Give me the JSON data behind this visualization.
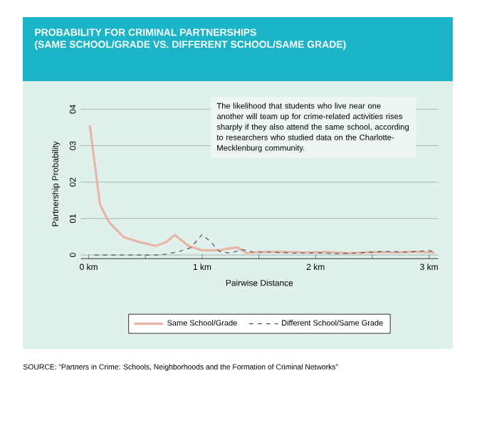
{
  "chart_data": {
    "type": "line",
    "title": "PROBABILITY FOR CRIMINAL PARTNERSHIPS",
    "subtitle": "(SAME SCHOOL/GRADE VS. DIFFERENT SCHOOL/SAME GRADE)",
    "xlabel": "Pairwise Distance",
    "ylabel": "Partnership Probability",
    "annotations": [
      "The likelihood that students who live near one another will team up for crime-related activities rises sharply if they also attend the same school, according to researchers who studied data on the Charlotte-Mecklenburg community.",
      "SOURCE: “Partners in Crime: Schools, Neighborhoods and the Formation of Criminal Networks”"
    ],
    "series": [
      {
        "name": "Same School/Grade",
        "color": "#e8b4a4",
        "line_style": "solid",
        "x": [
          0.01,
          0.1,
          0.18,
          0.31,
          0.45,
          0.59,
          0.68,
          0.76,
          0.88,
          1.0,
          1.16,
          1.23,
          1.31,
          1.39,
          1.5,
          1.7,
          1.9,
          2.1,
          2.3,
          2.5,
          2.7,
          2.9,
          3.05
        ],
        "values": [
          3.56,
          1.38,
          0.9,
          0.49,
          0.35,
          0.25,
          0.35,
          0.55,
          0.25,
          0.13,
          0.13,
          0.18,
          0.21,
          0.05,
          0.08,
          0.09,
          0.07,
          0.08,
          0.05,
          0.08,
          0.07,
          0.09,
          0.06
        ]
      },
      {
        "name": "Different School/Same Grade",
        "color": "#555555",
        "line_style": "dashed",
        "x": [
          0.05,
          0.3,
          0.6,
          0.7,
          0.8,
          0.9,
          1.0,
          1.08,
          1.15,
          1.25,
          1.35,
          1.45,
          1.6,
          1.8,
          2.0,
          2.2,
          2.4,
          2.6,
          2.8,
          3.0,
          3.05
        ],
        "values": [
          0,
          0,
          0,
          0.03,
          0.1,
          0.2,
          0.56,
          0.35,
          0.1,
          0.05,
          0.15,
          0.08,
          0.08,
          0.05,
          0.06,
          0.04,
          0.06,
          0.1,
          0.08,
          0.12,
          0.08
        ]
      }
    ],
    "xlim": [
      -0.07,
      3.08
    ],
    "ylim": [
      -0.1,
      4
    ],
    "xticks": [
      {
        "value": 0,
        "label": "0 km"
      },
      {
        "value": 0.5,
        "label": null
      },
      {
        "value": 1,
        "label": "1 km"
      },
      {
        "value": 1.5,
        "label": null
      },
      {
        "value": 2,
        "label": "2 km"
      },
      {
        "value": 2.5,
        "label": null
      },
      {
        "value": 3,
        "label": "3 km"
      }
    ],
    "yticks": [
      0,
      {
        "value": 1,
        "label": "01"
      },
      {
        "value": 2,
        "label": "02"
      },
      {
        "value": 3,
        "label": "03"
      },
      {
        "value": 4,
        "label": "04"
      }
    ],
    "grid": "y",
    "legend": "bottom"
  }
}
